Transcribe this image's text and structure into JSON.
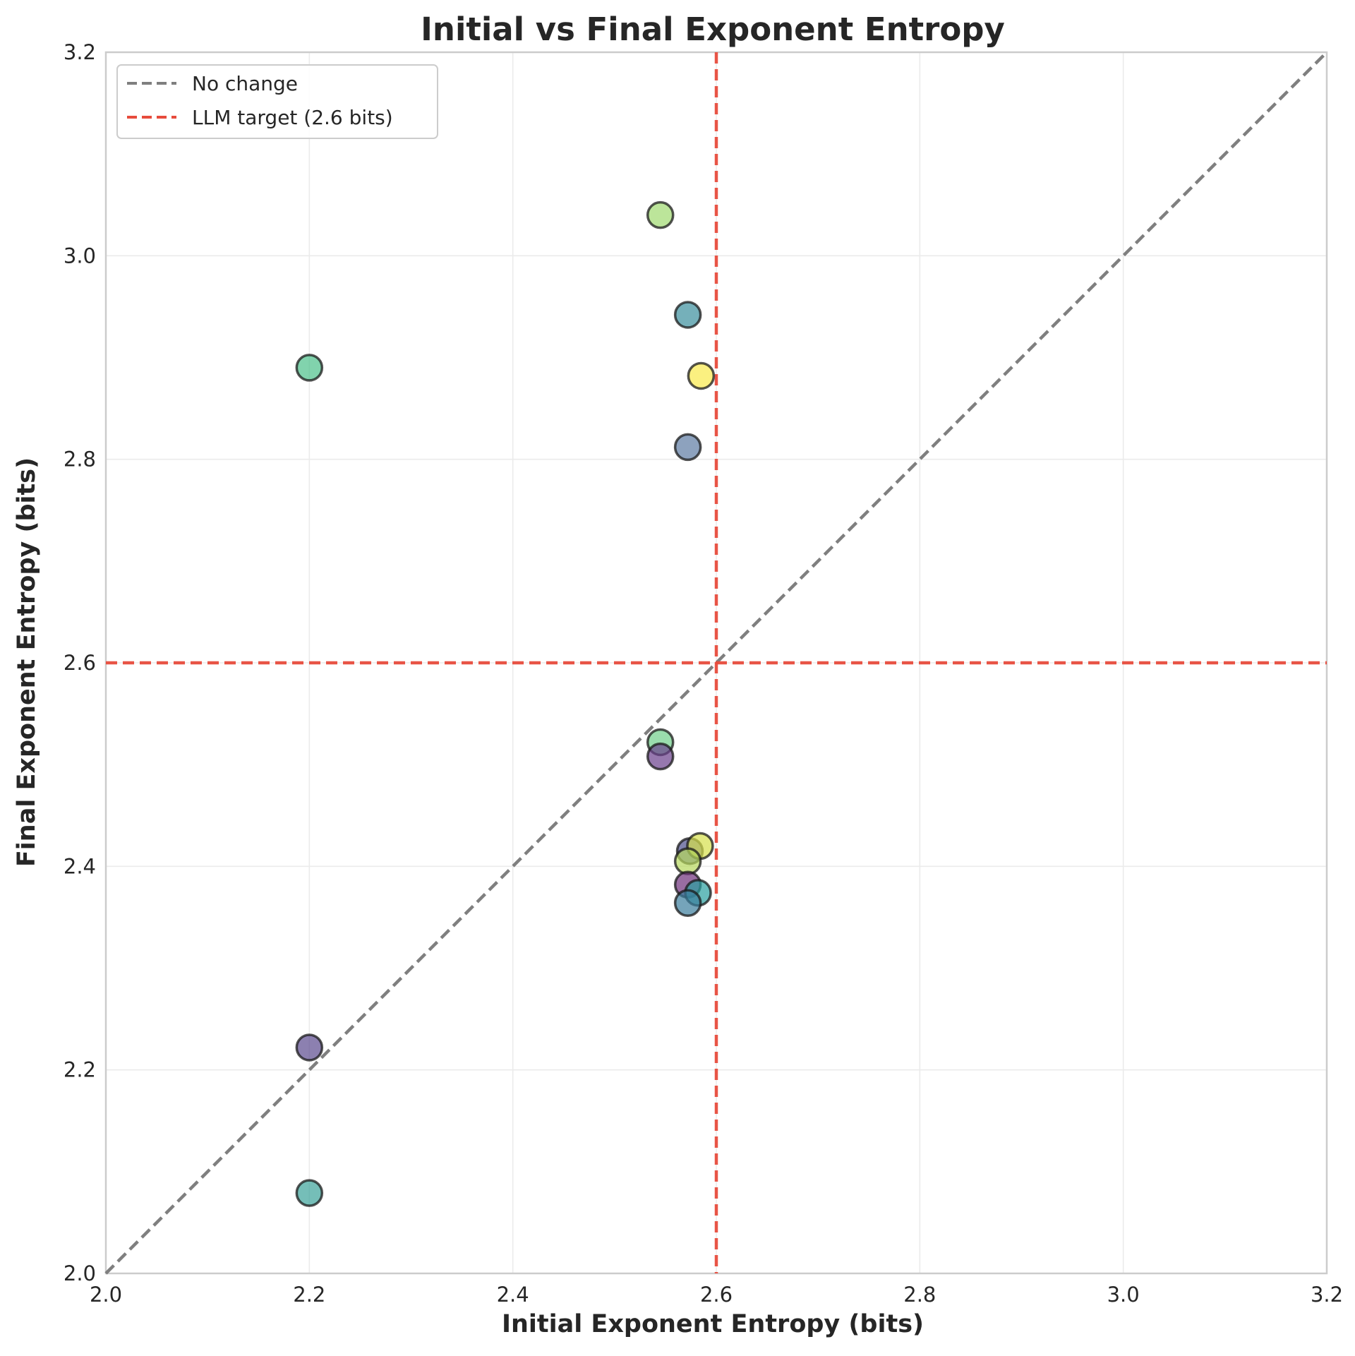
{
  "chart_data": {
    "type": "scatter",
    "title": "Initial vs Final Exponent Entropy",
    "xlabel": "Initial Exponent Entropy (bits)",
    "ylabel": "Final Exponent Entropy (bits)",
    "xlim": [
      2.0,
      3.2
    ],
    "ylim": [
      2.0,
      3.2
    ],
    "xticks": [
      "2.0",
      "2.2",
      "2.4",
      "2.6",
      "2.8",
      "3.0",
      "3.2"
    ],
    "yticks": [
      "2.0",
      "2.2",
      "2.4",
      "2.6",
      "2.8",
      "3.0",
      "3.2"
    ],
    "grid": true,
    "legend_position": "top-left",
    "reference_lines": {
      "no_change": {
        "label": "No change",
        "color": "#7f7f7f"
      },
      "llm_target": {
        "label": "LLM target (2.6 bits)",
        "value": 2.6,
        "color": "#e74c3c"
      }
    },
    "points": [
      {
        "x": 2.545,
        "y": 3.04,
        "color": "#a0da6f"
      },
      {
        "x": 2.572,
        "y": 2.942,
        "color": "#3a8e9c"
      },
      {
        "x": 2.2,
        "y": 2.89,
        "color": "#4cc08a"
      },
      {
        "x": 2.585,
        "y": 2.882,
        "color": "#f9e94a"
      },
      {
        "x": 2.572,
        "y": 2.812,
        "color": "#5c7aa3"
      },
      {
        "x": 2.545,
        "y": 2.522,
        "color": "#6fcf8a"
      },
      {
        "x": 2.545,
        "y": 2.508,
        "color": "#6a3f8c"
      },
      {
        "x": 2.574,
        "y": 2.415,
        "color": "#4b4f8c"
      },
      {
        "x": 2.584,
        "y": 2.42,
        "color": "#d6e04a"
      },
      {
        "x": 2.572,
        "y": 2.405,
        "color": "#b7d85c"
      },
      {
        "x": 2.572,
        "y": 2.382,
        "color": "#6d2f7a"
      },
      {
        "x": 2.582,
        "y": 2.374,
        "color": "#2aa0a0"
      },
      {
        "x": 2.572,
        "y": 2.364,
        "color": "#3a7d9c"
      },
      {
        "x": 2.2,
        "y": 2.222,
        "color": "#5b4a8f"
      },
      {
        "x": 2.2,
        "y": 2.079,
        "color": "#3aa39a"
      }
    ]
  }
}
